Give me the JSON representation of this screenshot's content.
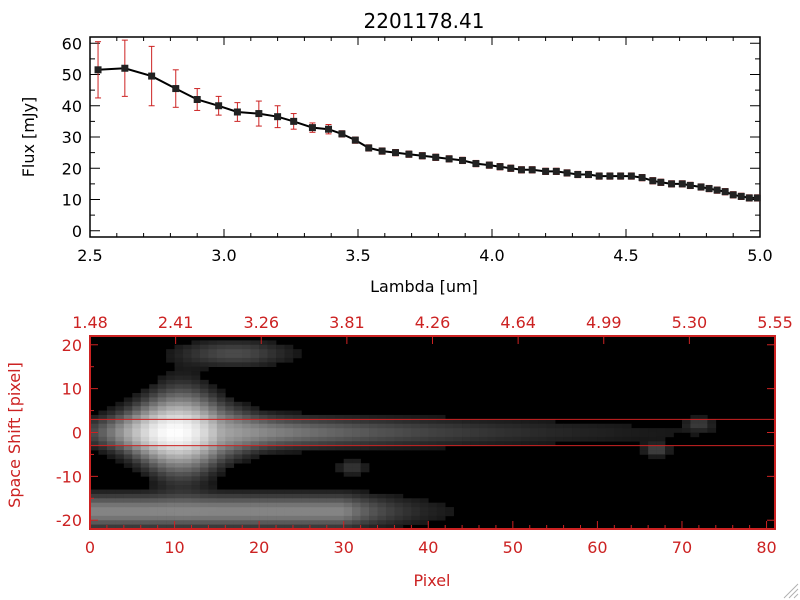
{
  "chart_data": [
    {
      "type": "line",
      "title": "2201178.41",
      "xlabel": "Lambda [um]",
      "ylabel": "Flux [mJy]",
      "xlim": [
        2.5,
        5.0
      ],
      "ylim": [
        -2,
        62
      ],
      "x_ticks": [
        "2.5",
        "3.0",
        "3.5",
        "4.0",
        "4.5",
        "5.0"
      ],
      "y_ticks": [
        "0",
        "10",
        "20",
        "30",
        "40",
        "50",
        "60"
      ],
      "grid": false,
      "series": [
        {
          "x": [
            2.53,
            2.63,
            2.73,
            2.82,
            2.9,
            2.98,
            3.05,
            3.13,
            3.2,
            3.26,
            3.33,
            3.39,
            3.44,
            3.49,
            3.54,
            3.59,
            3.64,
            3.69,
            3.74,
            3.79,
            3.84,
            3.89,
            3.94,
            3.99,
            4.03,
            4.07,
            4.11,
            4.15,
            4.2,
            4.24,
            4.28,
            4.32,
            4.36,
            4.4,
            4.44,
            4.48,
            4.52,
            4.56,
            4.6,
            4.63,
            4.67,
            4.71,
            4.74,
            4.78,
            4.81,
            4.84,
            4.87,
            4.9,
            4.93,
            4.96,
            4.99
          ],
          "y": [
            51.5,
            52,
            49.5,
            45.5,
            42,
            40,
            38,
            37.5,
            36.5,
            35,
            33,
            32.5,
            31,
            29,
            26.5,
            25.5,
            25,
            24.5,
            24,
            23.5,
            23,
            22.5,
            21.5,
            21,
            20.5,
            20,
            19.5,
            19.5,
            19,
            19,
            18.5,
            18,
            18,
            17.5,
            17.5,
            17.5,
            17.5,
            17,
            16,
            15.5,
            15,
            15,
            14.5,
            14,
            13.5,
            13,
            12.5,
            11.5,
            11,
            10.5,
            10.5
          ],
          "yerr": [
            9,
            9,
            9.5,
            6,
            3.5,
            3,
            3,
            4,
            3.5,
            2.5,
            1.5,
            1.5,
            1,
            1,
            1,
            1,
            1,
            1,
            1,
            1,
            1,
            1,
            1,
            1,
            1,
            1,
            1,
            1,
            1,
            1,
            1,
            1,
            1,
            1,
            1,
            1,
            1,
            1,
            1,
            1,
            1,
            1,
            1,
            1,
            1,
            1,
            1,
            1,
            1,
            1,
            1
          ]
        }
      ],
      "colors": {
        "line": "#000000",
        "marker": "#222222",
        "error_bar": "#cc2222"
      }
    },
    {
      "type": "heatmap",
      "xlabel": "Pixel",
      "ylabel": "Space Shift [pixel]",
      "xlim": [
        0,
        81
      ],
      "ylim": [
        -22,
        22
      ],
      "x_ticks": [
        "0",
        "10",
        "20",
        "30",
        "40",
        "50",
        "60",
        "70",
        "80"
      ],
      "y_ticks": [
        "-20",
        "-10",
        "0",
        "10",
        "20"
      ],
      "top_axis_ticks": [
        "1.48",
        "2.41",
        "3.26",
        "3.81",
        "4.26",
        "4.64",
        "4.99",
        "5.30",
        "5.55"
      ],
      "extraction_window": [
        -3,
        3
      ],
      "colormap": "grayscale",
      "colors": {
        "axis": "#cc2222",
        "window_lines": "#cc2222"
      }
    }
  ]
}
